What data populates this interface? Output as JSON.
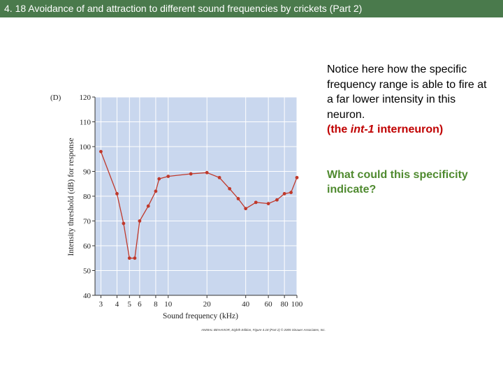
{
  "header": {
    "title": "4. 18 Avoidance of and attraction to different sound frequencies by crickets (Part 2)"
  },
  "notes": {
    "paragraph1": "Notice here how the specific frequency range is able to fire at a far lower intensity in this neuron.",
    "interneuron_prefix": "(the ",
    "interneuron_name": "int-1",
    "interneuron_suffix": " interneuron)",
    "question": "What could this specificity indicate?"
  },
  "credit": "ANIMAL BEHAVIOR, Eighth Edition, Figure 4.18 (Part 2) © 2005 Sinauer Associates, Inc.",
  "colors": {
    "title_bg": "#4a7a4c",
    "plot_bg": "#c9d7ee",
    "series": "#c0392b",
    "emphasis_red": "#c00000",
    "emphasis_green": "#4f8a2f"
  },
  "chart_data": {
    "type": "line",
    "panel_label": "(D)",
    "xlabel": "Sound frequency (kHz)",
    "ylabel": "Intensity threshold (dB) for response",
    "x_scale": "log",
    "xlim": [
      2.7,
      100
    ],
    "ylim": [
      40,
      120
    ],
    "xticks": [
      3,
      4,
      5,
      6,
      8,
      10,
      20,
      40,
      60,
      80,
      100
    ],
    "yticks": [
      40,
      50,
      60,
      70,
      80,
      90,
      100,
      110,
      120
    ],
    "grid": true,
    "series": [
      {
        "x": [
          3,
          4,
          4.5,
          5,
          5.5,
          6,
          7,
          8,
          8.5,
          10,
          15,
          20,
          25,
          30,
          35,
          40,
          48,
          60,
          70,
          80,
          90,
          100
        ],
        "y": [
          98,
          81,
          69,
          55,
          55,
          70,
          76,
          82,
          87,
          88,
          89,
          89.5,
          87.5,
          83,
          79,
          75,
          77.5,
          77,
          78.5,
          81,
          81.5,
          87.5
        ]
      }
    ]
  }
}
